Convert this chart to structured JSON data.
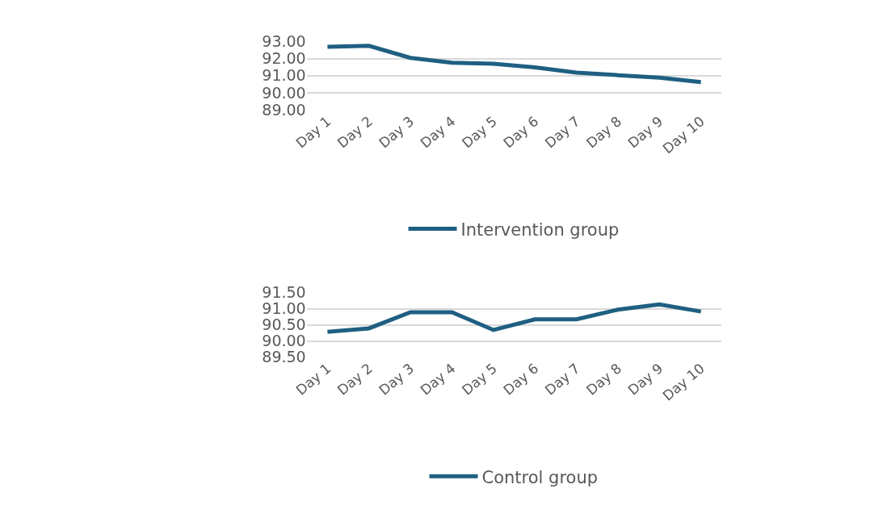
{
  "chart_data": [
    {
      "type": "line",
      "categories": [
        "Day 1",
        "Day 2",
        "Day 3",
        "Day 4",
        "Day 5",
        "Day 6",
        "Day 7",
        "Day 8",
        "Day 9",
        "Day 10"
      ],
      "series": [
        {
          "name": "Intervention group",
          "color": "#1f5f82",
          "values": [
            92.68,
            92.74,
            92.04,
            91.76,
            91.69,
            91.48,
            91.18,
            91.03,
            90.88,
            90.62
          ]
        }
      ],
      "ylim": [
        89,
        93
      ],
      "yticks": [
        {
          "value": 89,
          "label": "89.00"
        },
        {
          "value": 90,
          "label": "90.00"
        },
        {
          "value": 91,
          "label": "91.00"
        },
        {
          "value": 92,
          "label": "92.00"
        },
        {
          "value": 93,
          "label": "93.00"
        }
      ],
      "grid": "y",
      "legend": "bottom",
      "marker": "none",
      "line_style": "solid"
    },
    {
      "type": "line",
      "categories": [
        "Day 1",
        "Day 2",
        "Day 3",
        "Day 4",
        "Day 5",
        "Day 6",
        "Day 7",
        "Day 8",
        "Day 9",
        "Day 10"
      ],
      "series": [
        {
          "name": "Control group",
          "color": "#1f5f82",
          "values": [
            90.28,
            90.39,
            90.89,
            90.89,
            90.34,
            90.67,
            90.67,
            90.97,
            91.13,
            90.91
          ]
        }
      ],
      "ylim": [
        89.5,
        91.5
      ],
      "yticks": [
        {
          "value": 89.5,
          "label": "89.50"
        },
        {
          "value": 90,
          "label": "90.00"
        },
        {
          "value": 90.5,
          "label": "90.50"
        },
        {
          "value": 91,
          "label": "91.00"
        },
        {
          "value": 91.5,
          "label": "91.50"
        }
      ],
      "grid": "y",
      "legend": "bottom",
      "marker": "none",
      "line_style": "solid"
    }
  ]
}
